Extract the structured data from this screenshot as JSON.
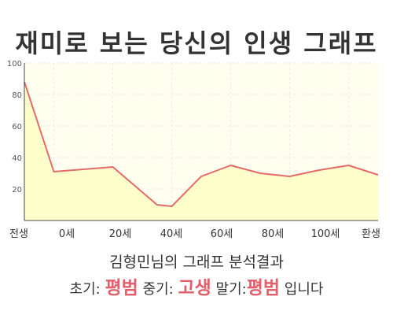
{
  "title": "재미로 보는 당신의 인생 그래프",
  "chart_data": {
    "type": "area",
    "x_labels": [
      "전생",
      "0세",
      "20세",
      "40세",
      "60세",
      "80세",
      "100세",
      "환생"
    ],
    "x": [
      -10,
      0,
      20,
      35,
      40,
      50,
      60,
      70,
      80,
      90,
      100,
      110
    ],
    "values": [
      88,
      31,
      34,
      10,
      9,
      28,
      35,
      30,
      28,
      32,
      35,
      29
    ],
    "ylim": [
      0,
      100
    ],
    "yticks": [
      20,
      40,
      60,
      80,
      100
    ],
    "grid": true,
    "fill_color": "#ffffcc",
    "line_color": "#e36b6b"
  },
  "footer": {
    "subtitle": "김형민님의 그래프 분석결과",
    "early_label": "초기:",
    "early_value": "평범",
    "mid_label": "중기:",
    "mid_value": "고생",
    "late_label": "말기:",
    "late_value": "평범",
    "ending": "입니다"
  }
}
